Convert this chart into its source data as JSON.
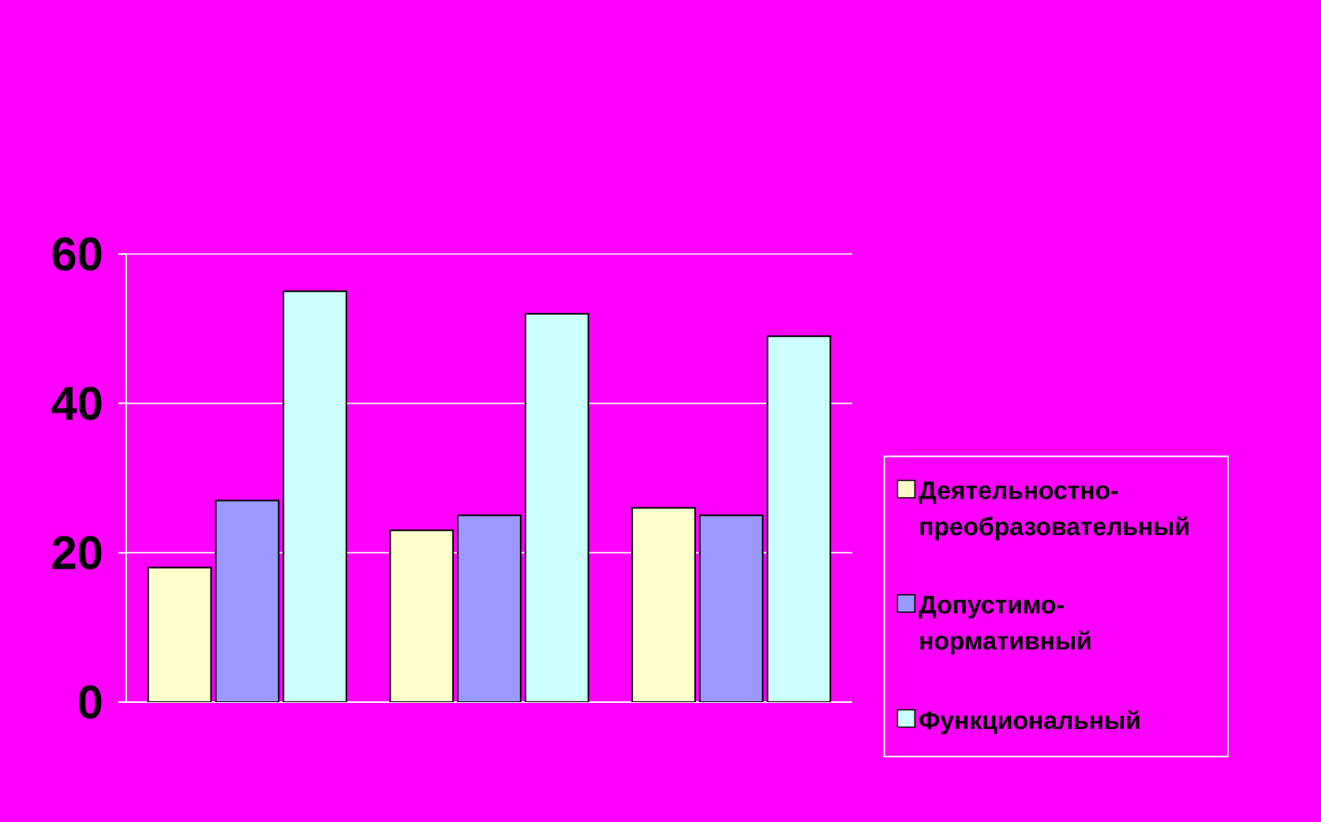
{
  "chart_data": {
    "type": "bar",
    "categories": [
      null,
      null,
      null
    ],
    "series": [
      {
        "name": "Деятельностно-преобразовательный",
        "color": "#ffffcc",
        "values": [
          18,
          23,
          26
        ]
      },
      {
        "name": "Допустимо-нормативный",
        "color": "#9999ff",
        "values": [
          27,
          25,
          25
        ]
      },
      {
        "name": "Функциональный",
        "color": "#ccffff",
        "values": [
          55,
          52,
          49
        ]
      }
    ],
    "ylim": [
      0,
      60
    ],
    "yticks": [
      0,
      20,
      40,
      60
    ],
    "grid": "y",
    "legend": "right"
  }
}
